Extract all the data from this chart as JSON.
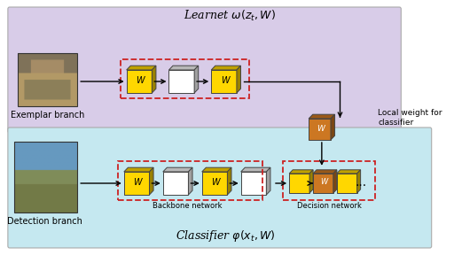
{
  "fig_width": 5.12,
  "fig_height": 2.88,
  "dpi": 100,
  "learnet_bg": "#d8cce8",
  "classifier_bg": "#c5e8f0",
  "learnet_label": "Learnet $\\omega(z_t,W)$",
  "classifier_label": "Classifier $\\varphi(x_t,W)$",
  "exemplar_label": "Exemplar branch",
  "detection_label": "Detection branch",
  "backbone_label": "Backbone network",
  "decision_label": "Decision network",
  "local_weight_label": "Local weight for\nclassifier",
  "yellow": "#FFD700",
  "yellow_dark": "#C8A800",
  "orange": "#CC7722",
  "orange_dark": "#995511",
  "gray_top": "#b0b0b0",
  "gray_side": "#c8c8c8"
}
